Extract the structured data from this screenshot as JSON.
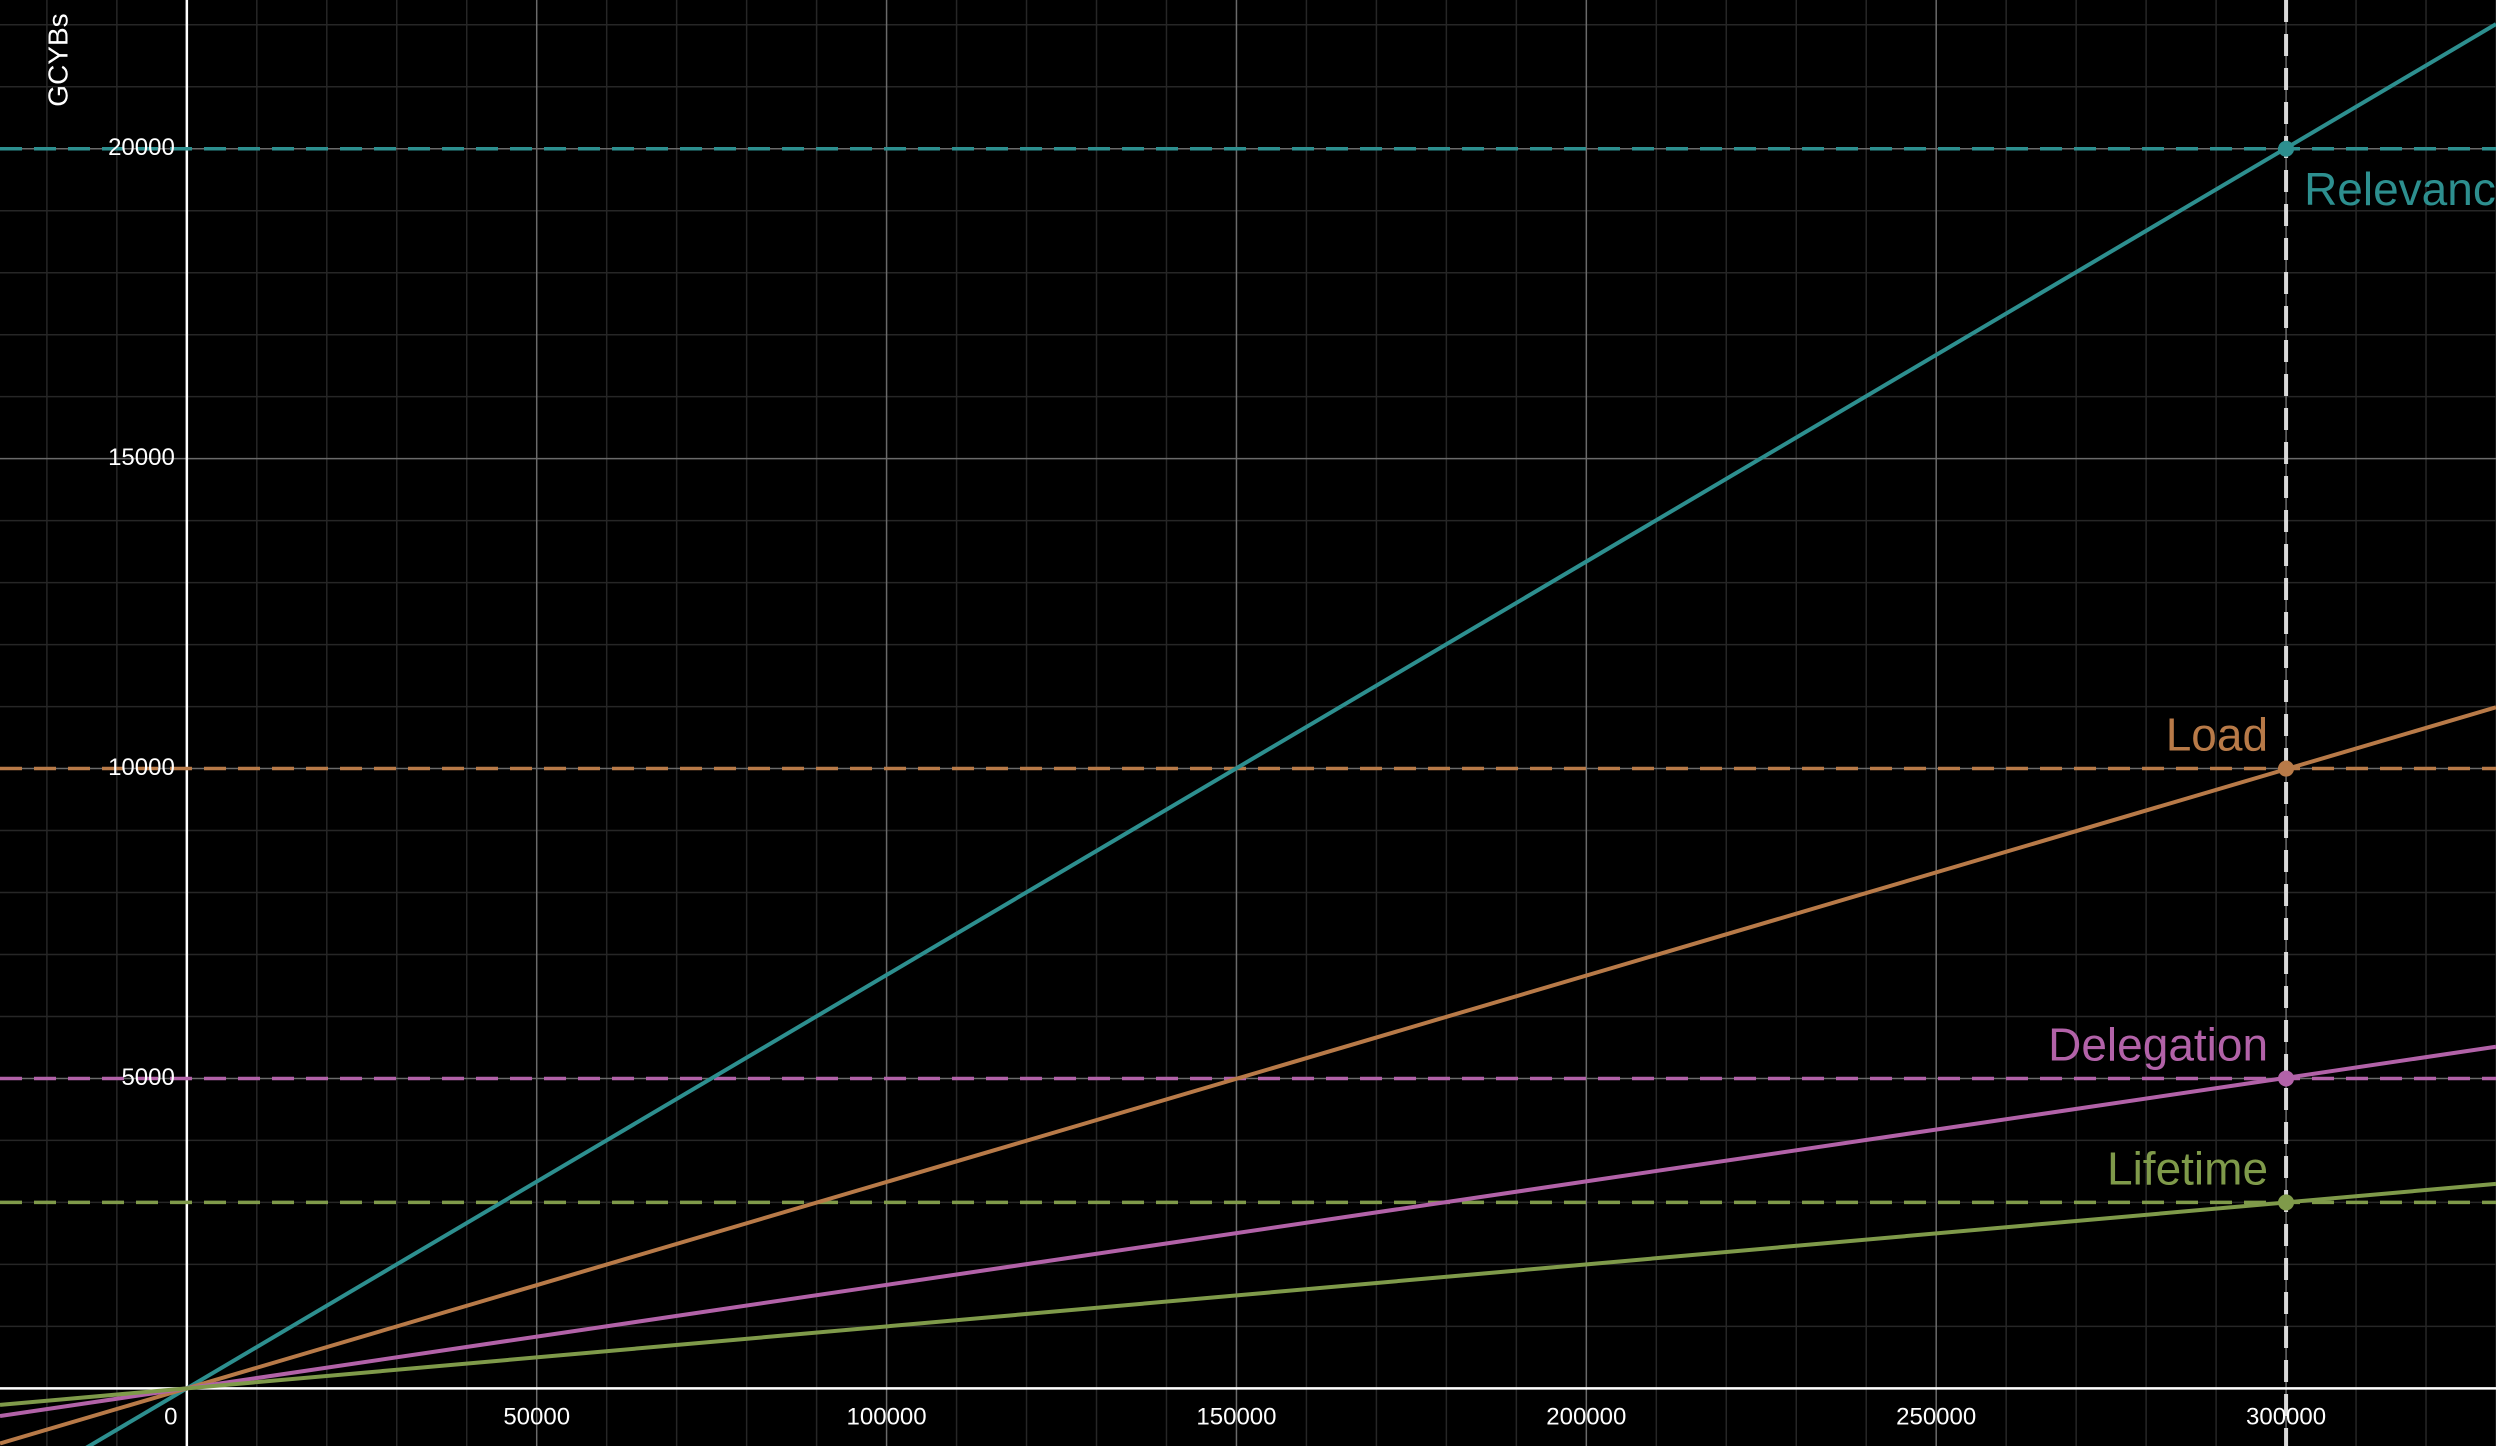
{
  "chart_data": {
    "type": "line",
    "title": "",
    "xlabel": "",
    "ylabel": "GCYBs",
    "xlim": [
      -26700,
      330000
    ],
    "ylim": [
      -930,
      22400
    ],
    "grid": true,
    "x_ticks": [
      "0",
      "50000",
      "100000",
      "150000",
      "200000",
      "250000",
      "300000"
    ],
    "y_ticks": [
      "5000",
      "10000",
      "15000",
      "20000"
    ],
    "reference_x": 300000,
    "series": [
      {
        "name": "Relevance",
        "color": "#2d8f8f",
        "slope": 0.0667,
        "value_at_reference": 20000
      },
      {
        "name": "Load",
        "color": "#b87a48",
        "slope": 0.0333,
        "value_at_reference": 10000
      },
      {
        "name": "Delegation",
        "color": "#b262a8",
        "slope": 0.0167,
        "value_at_reference": 5000
      },
      {
        "name": "Lifetime",
        "color": "#7f9a4a",
        "slope": 0.01,
        "value_at_reference": 3000
      }
    ],
    "reference_line_color": "#d9d9d9"
  }
}
